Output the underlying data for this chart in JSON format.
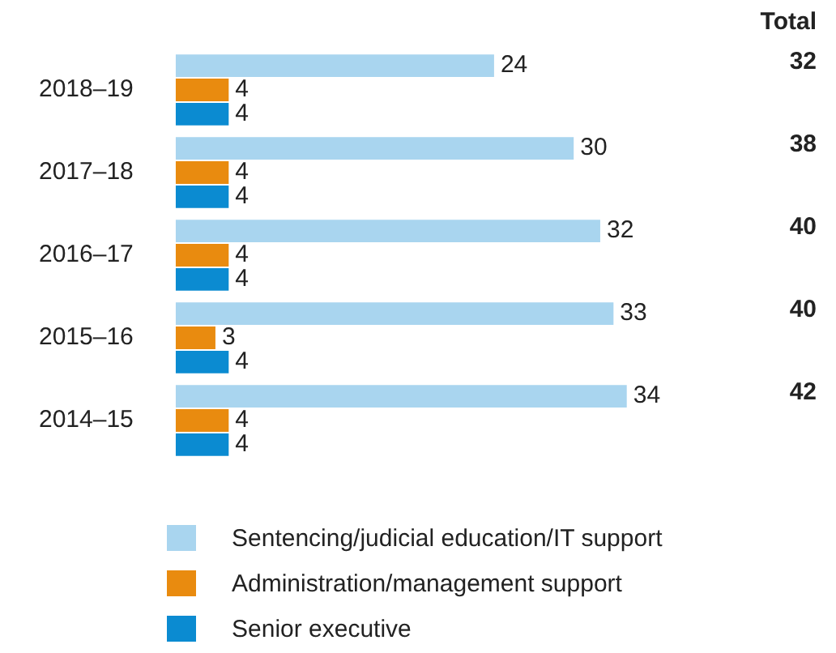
{
  "chart_data": {
    "type": "bar",
    "orientation": "horizontal",
    "categories": [
      "2018–19",
      "2017–18",
      "2016–17",
      "2015–16",
      "2014–15"
    ],
    "series": [
      {
        "name": "Sentencing/judicial education/IT support",
        "color": "#a9d5ef",
        "values": [
          24,
          30,
          32,
          33,
          34
        ]
      },
      {
        "name": "Administration/management support",
        "color": "#e98b0f",
        "values": [
          4,
          4,
          4,
          3,
          4
        ]
      },
      {
        "name": "Senior executive",
        "color": "#0b8bd1",
        "values": [
          4,
          4,
          4,
          4,
          4
        ]
      }
    ],
    "data_labels": true,
    "annotations": [
      "Total",
      "32",
      "38",
      "40",
      "40",
      "42"
    ],
    "legend": "bottom"
  }
}
